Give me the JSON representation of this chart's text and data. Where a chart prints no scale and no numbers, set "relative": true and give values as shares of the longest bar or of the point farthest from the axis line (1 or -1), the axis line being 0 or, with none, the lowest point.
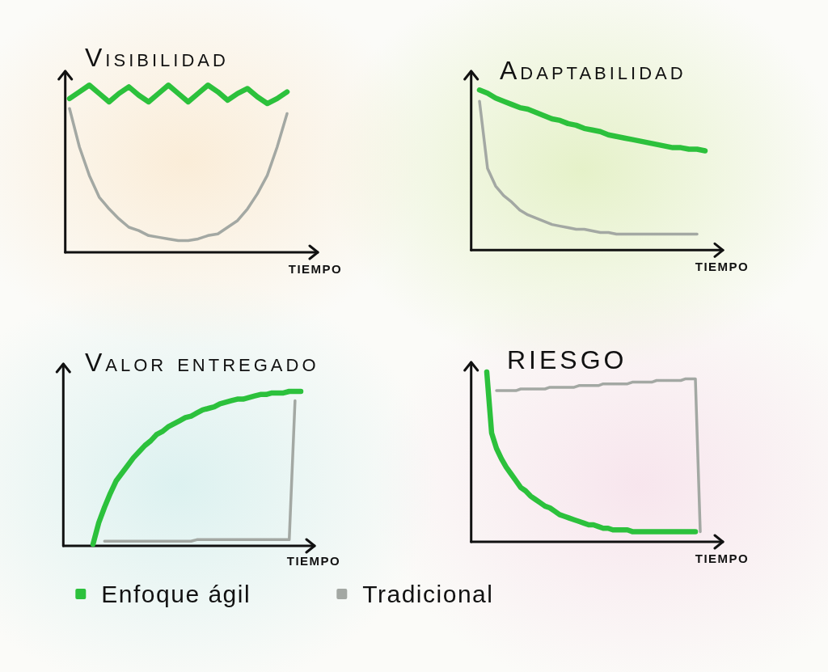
{
  "chart_data": [
    {
      "type": "line",
      "title": "Visibilidad",
      "xlabel": "TIEMPO",
      "relative": true,
      "categories": [
        null,
        null,
        null,
        null,
        null,
        null,
        null,
        null,
        null,
        null,
        null,
        null,
        null,
        null,
        null,
        null,
        null,
        null,
        null,
        null,
        null,
        null,
        null
      ],
      "series": [
        {
          "color": "#2cc13c",
          "values": [
            0.92,
            0.96,
            1,
            0.95,
            0.9,
            0.95,
            0.99,
            0.94,
            0.9,
            0.95,
            1,
            0.95,
            0.9,
            0.95,
            1,
            0.96,
            0.91,
            0.95,
            0.98,
            0.93,
            0.89,
            0.92,
            0.96
          ]
        },
        {
          "color": "#a3a8a3",
          "values": [
            0.86,
            0.63,
            0.46,
            0.33,
            0.26,
            0.2,
            0.15,
            0.13,
            0.1,
            0.09,
            0.08,
            0.07,
            0.07,
            0.08,
            0.1,
            0.11,
            0.15,
            0.19,
            0.26,
            0.35,
            0.46,
            0.63,
            0.83
          ]
        }
      ]
    },
    {
      "type": "line",
      "title": "Adaptabilidad",
      "xlabel": "TIEMPO",
      "relative": true,
      "categories": [
        null,
        null,
        null,
        null,
        null,
        null,
        null,
        null,
        null,
        null,
        null,
        null,
        null,
        null,
        null,
        null,
        null,
        null,
        null,
        null,
        null,
        null,
        null,
        null,
        null,
        null,
        null,
        null,
        null
      ],
      "series": [
        {
          "color": "#2cc13c",
          "values": [
            1,
            0.98,
            0.95,
            0.93,
            0.91,
            0.89,
            0.88,
            0.86,
            0.84,
            0.82,
            0.81,
            0.79,
            0.78,
            0.76,
            0.75,
            0.74,
            0.72,
            0.71,
            0.7,
            0.69,
            0.68,
            0.67,
            0.66,
            0.65,
            0.64,
            0.64,
            0.63,
            0.63,
            0.62
          ]
        },
        {
          "color": "#a3a8a3",
          "values": [
            0.93,
            0.51,
            0.4,
            0.34,
            0.3,
            0.25,
            0.22,
            0.2,
            0.18,
            0.16,
            0.15,
            0.14,
            0.13,
            0.13,
            0.12,
            0.11,
            0.11,
            0.1,
            0.1,
            0.1,
            0.1,
            0.1,
            0.1,
            0.1,
            0.1,
            0.1,
            0.1,
            0.1,
            null
          ]
        }
      ]
    },
    {
      "type": "line",
      "title": "Valor entregado",
      "xlabel": "TIEMPO",
      "relative": true,
      "legend": "bottom",
      "categories": [
        null,
        null,
        null,
        null,
        null,
        null,
        null,
        null,
        null,
        null,
        null,
        null,
        null,
        null,
        null,
        null,
        null,
        null,
        null,
        null,
        null,
        null,
        null,
        null,
        null,
        null,
        null,
        null,
        null,
        null,
        null,
        null,
        null,
        null,
        null,
        null,
        null
      ],
      "series": [
        {
          "name": "Enfoque ágil",
          "color": "#2cc13c",
          "values": [
            0.01,
            0.15,
            0.25,
            0.34,
            0.42,
            0.47,
            0.52,
            0.57,
            0.61,
            0.65,
            0.68,
            0.72,
            0.74,
            0.77,
            0.79,
            0.81,
            0.83,
            0.84,
            0.86,
            0.88,
            0.89,
            0.9,
            0.92,
            0.93,
            0.94,
            0.95,
            0.95,
            0.96,
            0.97,
            0.98,
            0.98,
            0.99,
            0.99,
            0.99,
            1,
            1,
            1
          ]
        },
        {
          "name": "Tradicional",
          "color": "#a3a8a3",
          "values": [
            null,
            null,
            0.03,
            0.03,
            0.03,
            0.03,
            0.03,
            0.03,
            0.03,
            0.03,
            0.03,
            0.03,
            0.03,
            0.03,
            0.03,
            0.03,
            0.03,
            0.03,
            0.04,
            0.04,
            0.04,
            0.04,
            0.04,
            0.04,
            0.04,
            0.04,
            0.04,
            0.04,
            0.04,
            0.04,
            0.04,
            0.04,
            0.04,
            0.04,
            0.04,
            0.94,
            null
          ]
        }
      ]
    },
    {
      "type": "line",
      "title": "RIESGO",
      "xlabel": "TIEMPO",
      "relative": true,
      "categories": [
        null,
        null,
        null,
        null,
        null,
        null,
        null,
        null,
        null,
        null,
        null,
        null,
        null,
        null,
        null,
        null,
        null,
        null,
        null,
        null,
        null,
        null,
        null,
        null,
        null,
        null,
        null,
        null,
        null,
        null,
        null,
        null,
        null,
        null,
        null,
        null,
        null,
        null,
        null,
        null,
        null,
        null,
        null,
        null,
        null
      ],
      "series": [
        {
          "color": "#2cc13c",
          "values": [
            1,
            0.64,
            0.55,
            0.49,
            0.44,
            0.4,
            0.36,
            0.32,
            0.3,
            0.27,
            0.25,
            0.23,
            0.21,
            0.2,
            0.18,
            0.16,
            0.15,
            0.14,
            0.13,
            0.12,
            0.11,
            0.1,
            0.1,
            0.09,
            0.08,
            0.08,
            0.07,
            0.07,
            0.07,
            0.07,
            0.06,
            0.06,
            0.06,
            0.06,
            0.06,
            0.06,
            0.06,
            0.06,
            0.06,
            0.06,
            0.06,
            0.06,
            0.06,
            0.06,
            null
          ]
        },
        {
          "color": "#a3a8a3",
          "values": [
            null,
            null,
            0.89,
            0.89,
            0.89,
            0.89,
            0.89,
            0.9,
            0.9,
            0.9,
            0.9,
            0.9,
            0.9,
            0.91,
            0.91,
            0.91,
            0.91,
            0.91,
            0.91,
            0.92,
            0.92,
            0.92,
            0.92,
            0.92,
            0.93,
            0.93,
            0.93,
            0.93,
            0.93,
            0.93,
            0.94,
            0.94,
            0.94,
            0.94,
            0.94,
            0.95,
            0.95,
            0.95,
            0.95,
            0.95,
            0.95,
            0.96,
            0.96,
            0.96,
            0.06
          ]
        }
      ]
    }
  ]
}
